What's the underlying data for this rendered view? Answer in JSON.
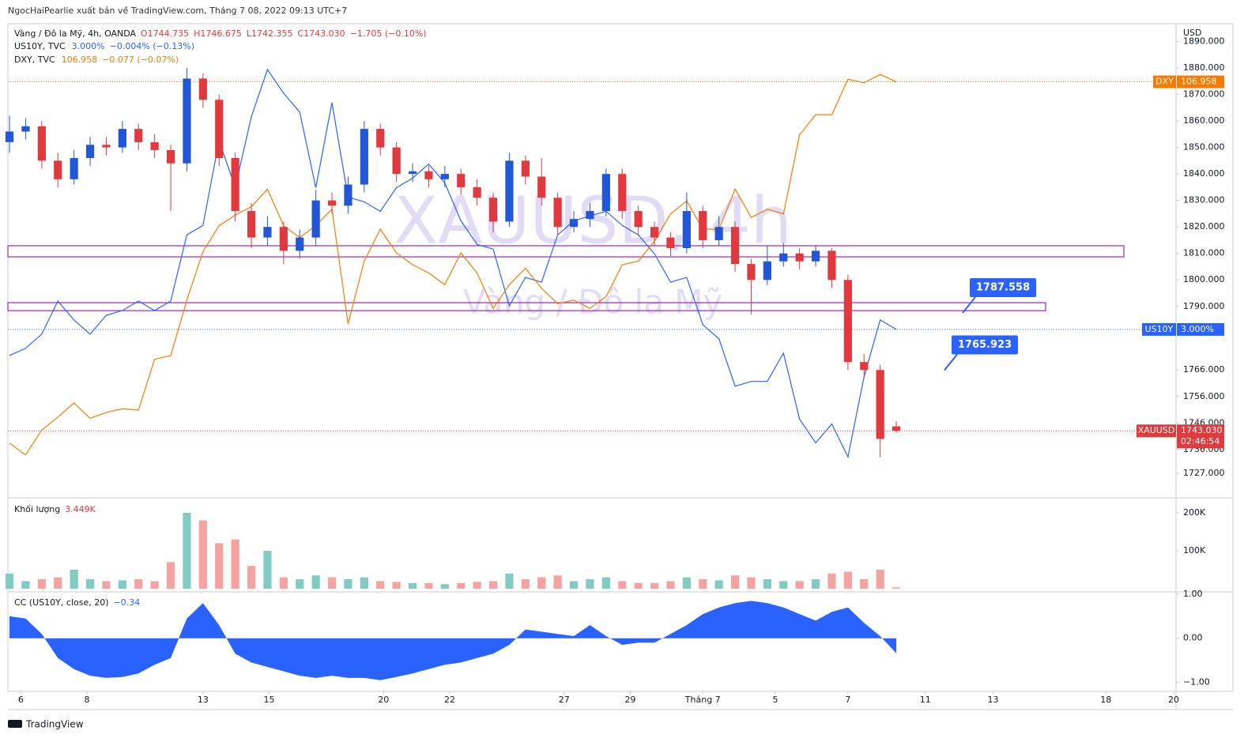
{
  "header": "NgocHaiPearlie xuất bản về TradingView.com, Tháng 7 08, 2022 09:13 UTC+7",
  "footer": "TradingView",
  "chart_data": {
    "type": "candlestick",
    "title": "Vàng / Đô la Mỹ, 4h, OANDA",
    "ohlc_labels": [
      "O1744.735",
      "H1746.675",
      "L1742.355",
      "C1743.030"
    ],
    "change_label": "−1.705 (−0.10%)",
    "watermark": "XAUUSD, 4h",
    "watermark_subtitle": "Vàng / Đô la Mỹ",
    "symbol": "XAUUSD",
    "last_label": "1743.030",
    "countdown": "02:46:54",
    "currency": "USD",
    "up_color": "#2157d6",
    "down_color": "#e0393e",
    "candles": [
      [
        1852,
        1862,
        1848,
        1856
      ],
      [
        1856,
        1861,
        1853,
        1858
      ],
      [
        1858,
        1860,
        1842,
        1845
      ],
      [
        1845,
        1848,
        1835,
        1838
      ],
      [
        1838,
        1849,
        1836,
        1846
      ],
      [
        1846,
        1854,
        1843,
        1851
      ],
      [
        1851,
        1854,
        1847,
        1850
      ],
      [
        1850,
        1860,
        1848,
        1857
      ],
      [
        1857,
        1859,
        1849,
        1852
      ],
      [
        1852,
        1855,
        1846,
        1849
      ],
      [
        1849,
        1851,
        1826,
        1844
      ],
      [
        1844,
        1880,
        1841,
        1876
      ],
      [
        1876,
        1878,
        1865,
        1868
      ],
      [
        1868,
        1870,
        1843,
        1846
      ],
      [
        1846,
        1848,
        1822,
        1826
      ],
      [
        1826,
        1829,
        1812,
        1816
      ],
      [
        1816,
        1824,
        1813,
        1820
      ],
      [
        1820,
        1822,
        1806,
        1811
      ],
      [
        1811,
        1819,
        1808,
        1816
      ],
      [
        1816,
        1834,
        1813,
        1830
      ],
      [
        1830,
        1833,
        1825,
        1828
      ],
      [
        1828,
        1839,
        1825,
        1836
      ],
      [
        1836,
        1860,
        1833,
        1857
      ],
      [
        1857,
        1859,
        1847,
        1850
      ],
      [
        1850,
        1852,
        1837,
        1840
      ],
      [
        1840,
        1844,
        1837,
        1841
      ],
      [
        1841,
        1843,
        1835,
        1838
      ],
      [
        1838,
        1843,
        1835,
        1840
      ],
      [
        1840,
        1842,
        1832,
        1835
      ],
      [
        1835,
        1838,
        1828,
        1831
      ],
      [
        1831,
        1833,
        1818,
        1822
      ],
      [
        1822,
        1848,
        1820,
        1845
      ],
      [
        1845,
        1847,
        1836,
        1839
      ],
      [
        1839,
        1846,
        1828,
        1831
      ],
      [
        1831,
        1833,
        1817,
        1820
      ],
      [
        1820,
        1826,
        1818,
        1823
      ],
      [
        1823,
        1829,
        1820,
        1826
      ],
      [
        1826,
        1842,
        1824,
        1840
      ],
      [
        1840,
        1842,
        1823,
        1826
      ],
      [
        1826,
        1828,
        1817,
        1820
      ],
      [
        1820,
        1822,
        1813,
        1816
      ],
      [
        1816,
        1818,
        1809,
        1812
      ],
      [
        1812,
        1833,
        1810,
        1826
      ],
      [
        1826,
        1828,
        1812,
        1815
      ],
      [
        1815,
        1824,
        1813,
        1820
      ],
      [
        1820,
        1822,
        1803,
        1806
      ],
      [
        1806,
        1808,
        1787,
        1800
      ],
      [
        1800,
        1813,
        1798,
        1807
      ],
      [
        1807,
        1814,
        1805,
        1810
      ],
      [
        1810,
        1812,
        1804,
        1807
      ],
      [
        1807,
        1813,
        1805,
        1811
      ],
      [
        1811,
        1812,
        1797,
        1800
      ],
      [
        1800,
        1802,
        1766,
        1769
      ],
      [
        1769,
        1772,
        1763,
        1766
      ],
      [
        1766,
        1768,
        1733,
        1740
      ],
      [
        1744.735,
        1746.675,
        1742.355,
        1743.03
      ]
    ],
    "xlim": [
      -0.1,
      72.35
    ],
    "xticks": [
      {
        "value": 0.7,
        "label": "6"
      },
      {
        "value": 4.8,
        "label": "8"
      },
      {
        "value": 12,
        "label": "13"
      },
      {
        "value": 16.1,
        "label": "15"
      },
      {
        "value": 23.2,
        "label": "20"
      },
      {
        "value": 27.3,
        "label": "22"
      },
      {
        "value": 34.4,
        "label": "27"
      },
      {
        "value": 38.5,
        "label": "29"
      },
      {
        "value": 43,
        "label": "Tháng 7"
      },
      {
        "value": 47.5,
        "label": "5"
      },
      {
        "value": 52,
        "label": "7"
      },
      {
        "value": 56.8,
        "label": "11"
      },
      {
        "value": 61,
        "label": "13"
      },
      {
        "value": 68,
        "label": "18"
      },
      {
        "value": 72.2,
        "label": "20"
      }
    ],
    "ylim": [
      1718.35,
      1896.7
    ],
    "yticks": [
      {
        "value": 1727,
        "label": "1727.000"
      },
      {
        "value": 1736,
        "label": "1736.000"
      },
      {
        "value": 1746,
        "label": "1746.000"
      },
      {
        "value": 1756,
        "label": "1756.000"
      },
      {
        "value": 1766,
        "label": "1766.000"
      },
      {
        "value": 1790,
        "label": "1790.000"
      },
      {
        "value": 1800,
        "label": "1800.000"
      },
      {
        "value": 1810,
        "label": "1810.000"
      },
      {
        "value": 1820,
        "label": "1820.000"
      },
      {
        "value": 1830,
        "label": "1830.000"
      },
      {
        "value": 1840,
        "label": "1840.000"
      },
      {
        "value": 1850,
        "label": "1850.000"
      },
      {
        "value": 1860,
        "label": "1860.000"
      },
      {
        "value": 1870,
        "label": "1870.000"
      },
      {
        "value": 1880,
        "label": "1880.000"
      },
      {
        "value": 1890,
        "label": "1890.000"
      }
    ],
    "zones": [
      [
        1808.7,
        1812.9
      ],
      [
        1788.4,
        1791.4
      ]
    ],
    "zone_color": "#9c27b0",
    "callouts": [
      1787.558,
      1765.923
    ],
    "callout_color": "#2962ff",
    "series": [
      {
        "name": "US10Y, TVC",
        "symbol": "US10Y",
        "color": "#2962ff",
        "ylim": [
          2.647,
          3.647
        ],
        "last_label": "3.000%",
        "change_label": "−0.004% (−0.13%)",
        "values": [
          2.945,
          2.96,
          2.99,
          3.06,
          3.02,
          2.99,
          3.03,
          3.04,
          3.06,
          3.04,
          3.06,
          3.2,
          3.22,
          3.4,
          3.3,
          3.45,
          3.55,
          3.5,
          3.46,
          3.3,
          3.48,
          3.28,
          3.27,
          3.25,
          3.3,
          3.32,
          3.35,
          3.31,
          3.23,
          3.18,
          3.17,
          3.05,
          3.11,
          3.1,
          3.2,
          3.23,
          3.24,
          3.25,
          3.22,
          3.2,
          3.16,
          3.1,
          3.11,
          3.01,
          2.98,
          2.88,
          2.89,
          2.89,
          2.95,
          2.81,
          2.76,
          2.8,
          2.73,
          2.9,
          3.02,
          3.0
        ]
      },
      {
        "name": "DXY, TVC",
        "symbol": "DXY",
        "color": "#f57c00",
        "ylim": [
          103.45,
          107.45
        ],
        "change_label": "−0.077 (−0.07%)",
        "values": [
          103.9,
          103.8,
          104.01,
          104.12,
          104.24,
          104.11,
          104.16,
          104.19,
          104.18,
          104.61,
          104.64,
          105.11,
          105.52,
          105.74,
          105.83,
          105.9,
          106.05,
          105.74,
          105.64,
          105.74,
          105.88,
          104.91,
          105.44,
          105.71,
          105.51,
          105.41,
          105.34,
          105.24,
          105.51,
          105.34,
          105.04,
          105.24,
          105.38,
          105.21,
          105.08,
          105.11,
          105.04,
          105.14,
          105.41,
          105.44,
          105.61,
          105.84,
          105.95,
          105.71,
          105.71,
          106.05,
          105.81,
          105.88,
          105.84,
          106.51,
          106.68,
          106.68,
          106.98,
          106.95,
          107.02,
          106.958
        ]
      }
    ],
    "volume": {
      "title": "Khối lượng",
      "last_label": "3.449K",
      "up_color": "#80cbc4",
      "down_color": "#f5a3a1",
      "ylim": [
        -6.25,
        235.4
      ],
      "yticks": [
        {
          "value": 100,
          "label": "100K"
        },
        {
          "value": 200,
          "label": "200K"
        }
      ],
      "values": [
        40,
        20,
        25,
        30,
        50,
        25,
        20,
        22,
        25,
        20,
        70,
        200,
        180,
        120,
        130,
        60,
        100,
        30,
        25,
        35,
        30,
        25,
        30,
        20,
        18,
        15,
        15,
        12,
        15,
        18,
        20,
        40,
        25,
        30,
        35,
        20,
        25,
        30,
        20,
        15,
        15,
        20,
        30,
        25,
        22,
        35,
        30,
        25,
        20,
        20,
        25,
        40,
        45,
        25,
        50,
        3.449
      ]
    },
    "indicator": {
      "title": "CC (US10Y, close, 20)",
      "last_label": "−0.34",
      "color": "#2962ff",
      "ylim": [
        -1.117,
        1.036
      ],
      "yticks": [
        {
          "value": 1,
          "label": "1.00"
        },
        {
          "value": 0,
          "label": "0.00"
        },
        {
          "value": -1,
          "label": "−1.00"
        }
      ],
      "values": [
        0.5,
        0.45,
        0.1,
        -0.45,
        -0.7,
        -0.85,
        -0.9,
        -0.88,
        -0.8,
        -0.6,
        -0.45,
        0.45,
        0.8,
        0.3,
        -0.35,
        -0.55,
        -0.65,
        -0.75,
        -0.85,
        -0.9,
        -0.85,
        -0.9,
        -0.9,
        -0.95,
        -0.88,
        -0.8,
        -0.7,
        -0.6,
        -0.55,
        -0.45,
        -0.35,
        -0.15,
        0.2,
        0.15,
        0.1,
        0.05,
        0.3,
        0.05,
        -0.15,
        -0.1,
        -0.1,
        0.1,
        0.3,
        0.55,
        0.7,
        0.8,
        0.85,
        0.8,
        0.7,
        0.55,
        0.4,
        0.6,
        0.7,
        0.35,
        0.05,
        -0.34
      ]
    }
  }
}
